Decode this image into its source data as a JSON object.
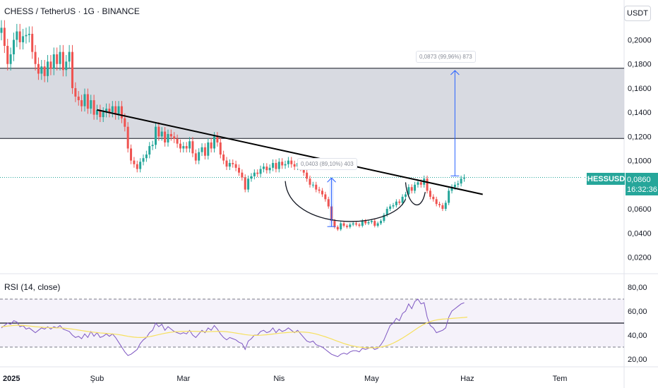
{
  "header": {
    "symbol_title": "CHESS / TetherUS · 1G · BINANCE",
    "currency": "USDT"
  },
  "price_tags": {
    "symbol": "CHESSUSDT",
    "last_price": "0,0860",
    "countdown": "16:32:36"
  },
  "measurements": [
    {
      "label": "0,0403 (89,10%) 403"
    },
    {
      "label": "0,0873 (99,96%) 873"
    }
  ],
  "rsi_panel": {
    "title": "RSI (14, close)"
  },
  "colors": {
    "up": "#26a69a",
    "down": "#ef5350",
    "rsi_line": "#7e57c2",
    "rsi_ma": "#f6e05e",
    "trendline": "#000000",
    "measure_arrow": "#2962ff",
    "zone_fill": "#d1d4dc",
    "price_line": "#26a69a"
  },
  "chart_data": [
    {
      "type": "candlestick",
      "title": "CHESS / TetherUS · 1G · BINANCE",
      "y_axis_ticks": [
        "0,2000",
        "0,1800",
        "0,1600",
        "0,1400",
        "0,1200",
        "0,1000",
        "0,0800",
        "0,0600",
        "0,0400",
        "0,0200"
      ],
      "y_tick_values": [
        0.2,
        0.18,
        0.16,
        0.14,
        0.12,
        0.1,
        0.08,
        0.06,
        0.04,
        0.02
      ],
      "x_axis_ticks": [
        "2025",
        "Şub",
        "Mar",
        "Nis",
        "May",
        "Haz",
        "Tem"
      ],
      "x_tick_days": [
        0,
        31,
        59,
        90,
        120,
        151,
        181
      ],
      "ylim": [
        0.007,
        0.213
      ],
      "x_start_date": "2025-01-01",
      "resistance_zone": [
        0.1183,
        0.1765
      ],
      "last_price": 0.086,
      "candle_closes": [
        0.21,
        0.195,
        0.18,
        0.188,
        0.2,
        0.207,
        0.198,
        0.203,
        0.204,
        0.205,
        0.19,
        0.18,
        0.172,
        0.178,
        0.17,
        0.182,
        0.176,
        0.188,
        0.18,
        0.19,
        0.175,
        0.182,
        0.19,
        0.16,
        0.153,
        0.15,
        0.145,
        0.155,
        0.143,
        0.15,
        0.138,
        0.142,
        0.136,
        0.14,
        0.143,
        0.14,
        0.145,
        0.138,
        0.145,
        0.135,
        0.128,
        0.11,
        0.1,
        0.097,
        0.093,
        0.099,
        0.102,
        0.105,
        0.112,
        0.113,
        0.128,
        0.12,
        0.124,
        0.115,
        0.122,
        0.12,
        0.118,
        0.114,
        0.11,
        0.112,
        0.11,
        0.116,
        0.106,
        0.1,
        0.107,
        0.111,
        0.104,
        0.115,
        0.11,
        0.12,
        0.115,
        0.105,
        0.1,
        0.095,
        0.098,
        0.097,
        0.094,
        0.09,
        0.086,
        0.076,
        0.085,
        0.087,
        0.09,
        0.089,
        0.093,
        0.095,
        0.092,
        0.094,
        0.098,
        0.093,
        0.099,
        0.096,
        0.097,
        0.1,
        0.097,
        0.095,
        0.098,
        0.094,
        0.09,
        0.085,
        0.08,
        0.08,
        0.076,
        0.075,
        0.072,
        0.068,
        0.062,
        0.05,
        0.045,
        0.043,
        0.048,
        0.046,
        0.045,
        0.047,
        0.048,
        0.047,
        0.046,
        0.05,
        0.048,
        0.049,
        0.05,
        0.046,
        0.048,
        0.05,
        0.055,
        0.06,
        0.062,
        0.063,
        0.066,
        0.065,
        0.07,
        0.072,
        0.078,
        0.075,
        0.08,
        0.082,
        0.08,
        0.085,
        0.075,
        0.07,
        0.068,
        0.064,
        0.063,
        0.06,
        0.065,
        0.075,
        0.078,
        0.08,
        0.081,
        0.085,
        0.086
      ],
      "trendline": {
        "from": {
          "day": 31,
          "price": 0.142
        },
        "to": {
          "day": 156,
          "price": 0.072
        }
      },
      "measure_1": {
        "from_price": 0.0453,
        "to_price": 0.0856,
        "day": 107
      },
      "measure_2": {
        "from_price": 0.0873,
        "to_price": 0.1746,
        "day": 147
      },
      "cup": {
        "left_day": 92,
        "bottom_price": 0.046,
        "right_day": 131
      }
    },
    {
      "type": "line",
      "title": "RSI (14, close)",
      "y_axis_ticks": [
        "80,00",
        "60,00",
        "40,00",
        "20,00"
      ],
      "y_tick_values": [
        80,
        60,
        40,
        20
      ],
      "ylim": [
        16,
        86
      ],
      "bands": {
        "upper": 70,
        "middle": 50,
        "lower": 30
      },
      "series": [
        {
          "values": [
            46,
            48,
            50,
            49,
            52,
            51,
            47,
            48,
            45,
            46,
            44,
            42,
            44,
            46,
            45,
            47,
            45,
            47,
            46,
            48,
            45,
            44,
            43,
            40,
            38,
            39,
            37,
            41,
            38,
            43,
            39,
            42,
            38,
            39,
            41,
            39,
            41,
            38,
            34,
            30,
            26,
            23,
            24,
            26,
            28,
            33,
            36,
            38,
            42,
            44,
            50,
            47,
            49,
            44,
            47,
            45,
            43,
            42,
            41,
            42,
            41,
            44,
            40,
            38,
            41,
            44,
            42,
            46,
            44,
            48,
            45,
            41,
            38,
            36,
            38,
            37,
            36,
            34,
            33,
            28,
            35,
            37,
            40,
            40,
            43,
            44,
            42,
            43,
            46,
            42,
            45,
            43,
            44,
            46,
            44,
            42,
            44,
            41,
            38,
            35,
            34,
            35,
            32,
            31,
            30,
            28,
            26,
            24,
            23,
            22,
            24,
            25,
            24,
            26,
            27,
            27,
            26,
            29,
            28,
            29,
            30,
            28,
            29,
            32,
            36,
            42,
            48,
            50,
            54,
            52,
            58,
            60,
            66,
            62,
            68,
            70,
            66,
            67,
            55,
            48,
            46,
            42,
            43,
            44,
            46,
            55,
            60,
            62,
            64,
            66,
            67
          ]
        },
        {
          "values": [
            47,
            47.2,
            47.5,
            47.8,
            48,
            48.2,
            48.1,
            48,
            47.8,
            47.6,
            47.3,
            47,
            46.8,
            46.6,
            46.4,
            46.3,
            46.2,
            46.1,
            46,
            46,
            45.8,
            45.6,
            45.3,
            45,
            44.6,
            44.2,
            43.8,
            43.4,
            43,
            42.7,
            42.4,
            42.1,
            41.8,
            41.6,
            41.4,
            41.2,
            41,
            40.7,
            40.4,
            40,
            39.5,
            39,
            38.6,
            38.3,
            38.1,
            38,
            38.1,
            38.3,
            38.7,
            39.2,
            39.8,
            40.4,
            41,
            41.5,
            42,
            42.4,
            42.7,
            42.9,
            43,
            43.1,
            43.1,
            43.2,
            43.2,
            43.1,
            43,
            42.9,
            42.8,
            42.8,
            42.9,
            43,
            43.1,
            43.1,
            43,
            42.8,
            42.5,
            42.1,
            41.7,
            41.3,
            40.9,
            40.4,
            40.1,
            39.9,
            39.8,
            39.8,
            39.9,
            40.1,
            40.3,
            40.6,
            40.9,
            41.2,
            41.5,
            41.8,
            42,
            42.2,
            42.4,
            42.5,
            42.6,
            42.6,
            42.5,
            42.3,
            42,
            41.5,
            40.9,
            40.2,
            39.4,
            38.6,
            37.7,
            36.8,
            35.8,
            34.8,
            33.9,
            33,
            32.2,
            31.5,
            30.9,
            30.4,
            30,
            29.7,
            29.5,
            29.4,
            29.4,
            29.5,
            29.7,
            30.1,
            30.6,
            31.3,
            32.2,
            33.3,
            34.6,
            36,
            37.5,
            39.1,
            40.8,
            42.5,
            44.3,
            46,
            47.6,
            49.1,
            50.2,
            51.2,
            52,
            52.6,
            53,
            53.3,
            53.5,
            53.7,
            53.9,
            54.1,
            54.3,
            54.5,
            54.7,
            55
          ]
        }
      ]
    }
  ]
}
